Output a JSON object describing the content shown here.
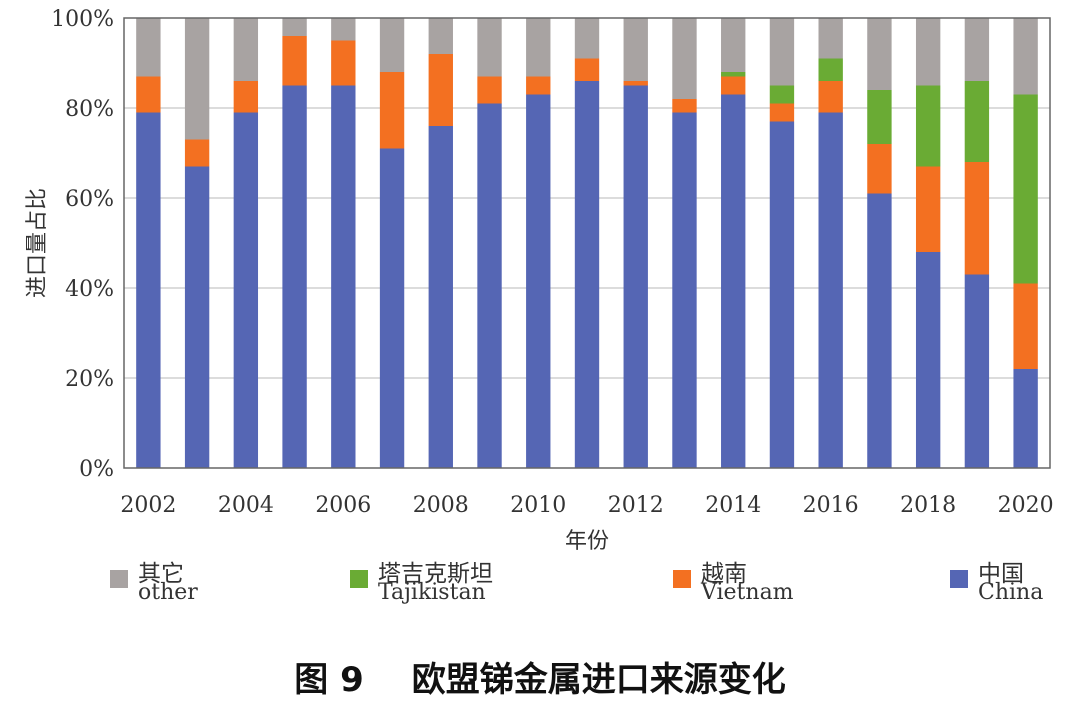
{
  "chart_data": {
    "type": "bar",
    "stacked": true,
    "title": "",
    "xlabel": "年份",
    "ylabel": "进口量占比",
    "ylim": [
      0,
      100
    ],
    "y_ticks": [
      "0%",
      "20%",
      "40%",
      "60%",
      "80%",
      "100%"
    ],
    "x_tick_labels": [
      "2002",
      "2004",
      "2006",
      "2008",
      "2010",
      "2012",
      "2014",
      "2016",
      "2018",
      "2020"
    ],
    "categories": [
      "2002",
      "2003",
      "2004",
      "2005",
      "2006",
      "2007",
      "2008",
      "2009",
      "2010",
      "2011",
      "2012",
      "2013",
      "2014",
      "2015",
      "2016",
      "2017",
      "2018",
      "2019",
      "2020"
    ],
    "series": [
      {
        "name": "中国 China",
        "color": "#5566b4",
        "values": [
          79,
          67,
          79,
          85,
          85,
          71,
          76,
          81,
          83,
          86,
          85,
          79,
          83,
          77,
          79,
          61,
          48,
          43,
          22
        ]
      },
      {
        "name": "越南 Vietnam",
        "color": "#f37021",
        "values": [
          8,
          6,
          7,
          11,
          10,
          17,
          16,
          6,
          4,
          5,
          1,
          3,
          4,
          4,
          7,
          11,
          19,
          25,
          19
        ]
      },
      {
        "name": "塔吉克斯坦 Tajikistan",
        "color": "#6aab34",
        "values": [
          0,
          0,
          0,
          0,
          0,
          0,
          0,
          0,
          0,
          0,
          0,
          0,
          1,
          4,
          5,
          12,
          18,
          18,
          42
        ]
      },
      {
        "name": "其它 other",
        "color": "#a8a3a2",
        "values": [
          13,
          27,
          14,
          4,
          5,
          12,
          8,
          13,
          13,
          9,
          14,
          18,
          12,
          15,
          9,
          16,
          15,
          14,
          17
        ]
      }
    ],
    "grid": true,
    "legend_position": "bottom"
  },
  "legend": [
    {
      "zh": "其它",
      "en": "other",
      "color": "#a8a3a2"
    },
    {
      "zh": "塔吉克斯坦",
      "en": "Tajikistan",
      "color": "#6aab34"
    },
    {
      "zh": "越南",
      "en": "Vietnam",
      "color": "#f37021"
    },
    {
      "zh": "中国",
      "en": "China",
      "color": "#5566b4"
    }
  ],
  "caption": {
    "number": "图 9",
    "text": "欧盟锑金属进口来源变化"
  }
}
